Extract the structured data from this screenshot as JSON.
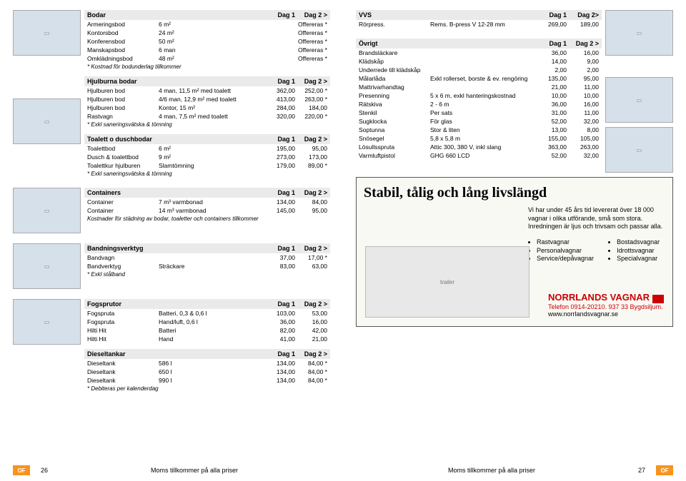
{
  "left": {
    "bodar": {
      "title": "Bodar",
      "d1": "Dag 1",
      "d2": "Dag 2 >",
      "rows": [
        {
          "name": "Armeringsbod",
          "desc": "6 m²",
          "d1": "",
          "d2": "Offereras *"
        },
        {
          "name": "Kontorsbod",
          "desc": "24 m²",
          "d1": "",
          "d2": "Offereras *"
        },
        {
          "name": "Konferensbod",
          "desc": "50 m²",
          "d1": "",
          "d2": "Offereras *"
        },
        {
          "name": "Manskapsbod",
          "desc": "6 man",
          "d1": "",
          "d2": "Offereras *"
        },
        {
          "name": "Omklädningsbod",
          "desc": "48 m²",
          "d1": "",
          "d2": "Offereras *"
        }
      ],
      "note": "* Kostnad för bodunderlag tillkommer"
    },
    "hjulburna": {
      "title": "Hjulburna bodar",
      "d1": "Dag 1",
      "d2": "Dag 2 >",
      "rows": [
        {
          "name": "Hjulburen bod",
          "desc": "4 man, 11,5 m² med toalett",
          "d1": "362,00",
          "d2": "252,00 *"
        },
        {
          "name": "Hjulburen bod",
          "desc": "4/6 man, 12,9 m² med toalett",
          "d1": "413,00",
          "d2": "263,00 *"
        },
        {
          "name": "Hjulburen bod",
          "desc": "Kontor, 15 m²",
          "d1": "284,00",
          "d2": "184,00"
        },
        {
          "name": "Rastvagn",
          "desc": "4 man, 7,5 m² med toalett",
          "d1": "320,00",
          "d2": "220,00 *"
        }
      ],
      "note": "* Exkl saneringsvätska & tömning"
    },
    "toalett": {
      "title": "Toalett o duschbodar",
      "d1": "Dag 1",
      "d2": "Dag 2 >",
      "rows": [
        {
          "name": "Toalettbod",
          "desc": "6 m²",
          "d1": "195,00",
          "d2": "95,00"
        },
        {
          "name": "Dusch & toalettbod",
          "desc": "9 m²",
          "d1": "273,00",
          "d2": "173,00"
        },
        {
          "name": "Toalettkur hjulburen",
          "desc": "Slamtömning",
          "d1": "179,00",
          "d2": "89,00 *"
        }
      ],
      "note": "* Exkl saneringsvätska & tömning"
    },
    "containers": {
      "title": "Containers",
      "d1": "Dag 1",
      "d2": "Dag 2 >",
      "rows": [
        {
          "name": "Container",
          "desc": "7 m³ varmbonad",
          "d1": "134,00",
          "d2": "84,00"
        },
        {
          "name": "Container",
          "desc": "14 m³ varmbonad",
          "d1": "145,00",
          "d2": "95,00"
        }
      ],
      "note": "Kostnader för städning av bodar, toaletter och containers tillkommer"
    },
    "bandning": {
      "title": "Bandningsverktyg",
      "d1": "Dag 1",
      "d2": "Dag 2 >",
      "rows": [
        {
          "name": "Bandvagn",
          "desc": "",
          "d1": "37,00",
          "d2": "17,00 *"
        },
        {
          "name": "Bandverktyg",
          "desc": "Sträckare",
          "d1": "83,00",
          "d2": "63,00"
        }
      ],
      "note": "* Exkl stålband"
    },
    "fogsprutor": {
      "title": "Fogsprutor",
      "d1": "Dag 1",
      "d2": "Dag 2 >",
      "rows": [
        {
          "name": "Fogspruta",
          "desc": "Batteri, 0,3 & 0,6 l",
          "d1": "103,00",
          "d2": "53,00"
        },
        {
          "name": "Fogspruta",
          "desc": "Hand/luft, 0,6 l",
          "d1": "36,00",
          "d2": "16,00"
        },
        {
          "name": "Hilti Hit",
          "desc": "Batteri",
          "d1": "82,00",
          "d2": "42,00"
        },
        {
          "name": "Hilti Hit",
          "desc": "Hand",
          "d1": "41,00",
          "d2": "21,00"
        }
      ]
    },
    "diesel": {
      "title": "Dieseltankar",
      "d1": "Dag 1",
      "d2": "Dag 2 >",
      "rows": [
        {
          "name": "Dieseltank",
          "desc": "586 l",
          "d1": "134,00",
          "d2": "84,00 *"
        },
        {
          "name": "Dieseltank",
          "desc": "650 l",
          "d1": "134,00",
          "d2": "84,00 *"
        },
        {
          "name": "Dieseltank",
          "desc": "990 l",
          "d1": "134,00",
          "d2": "84,00 *"
        }
      ],
      "note": "* Debiteras per kalenderdag"
    },
    "footer": {
      "page": "26",
      "text": "Moms tillkommer på alla priser",
      "logo": "OF"
    }
  },
  "right": {
    "vvs": {
      "title": "VVS",
      "d1": "Dag 1",
      "d2": "Dag 2>",
      "rows": [
        {
          "name": "Rörpress.",
          "desc": "Rems. B-press V 12-28 mm",
          "d1": "269,00",
          "d2": "189,00"
        }
      ]
    },
    "ovrigt": {
      "title": "Övrigt",
      "d1": "Dag 1",
      "d2": "Dag 2 >",
      "rows": [
        {
          "name": "Brandsläckare",
          "desc": "",
          "d1": "36,00",
          "d2": "16,00"
        },
        {
          "name": "Klädskåp",
          "desc": "",
          "d1": "14,00",
          "d2": "9,00"
        },
        {
          "name": "Underrede till klädskåp",
          "desc": "",
          "d1": "2,00",
          "d2": "2,00"
        },
        {
          "name": "Målarlåda",
          "desc": "Exkl rollerset, borste & ev. rengöring",
          "d1": "135,00",
          "d2": "95,00"
        },
        {
          "name": "Mattrivarhandtag",
          "desc": "",
          "d1": "21,00",
          "d2": "11,00"
        },
        {
          "name": "Presenning",
          "desc": "5 x 6 m, exkl hanteringskostnad",
          "d1": "10,00",
          "d2": "10,00"
        },
        {
          "name": "Rätskiva",
          "desc": "2 - 6 m",
          "d1": "36,00",
          "d2": "16,00"
        },
        {
          "name": "Stenkil",
          "desc": "Per sats",
          "d1": "31,00",
          "d2": "11,00"
        },
        {
          "name": "Sugklocka",
          "desc": "För glas",
          "d1": "52,00",
          "d2": "32,00"
        },
        {
          "name": "Soptunna",
          "desc": "Stor & liten",
          "d1": "13,00",
          "d2": "8,00"
        },
        {
          "name": "Snösegel",
          "desc": "5,8 x 5,8 m",
          "d1": "155,00",
          "d2": "105,00"
        },
        {
          "name": "Lösullsspruta",
          "desc": "Attic 300, 380 V, inkl slang",
          "d1": "363,00",
          "d2": "263,00"
        },
        {
          "name": "Varmluftpistol",
          "desc": "GHG 660 LCD",
          "d1": "52,00",
          "d2": "32,00"
        }
      ]
    },
    "promo": {
      "title": "Stabil, tålig och lång livslängd",
      "blurb": "Vi har under 45 års tid levererat över 18 000 vagnar i olika utförande, små som stora. Inredningen är ljus och trivsam och passar alla.",
      "bullets_l": [
        "Rastvagnar",
        "Personalvagnar",
        "Service/depåvagnar"
      ],
      "bullets_r": [
        "Bostadsvagnar",
        "Idrottsvagnar",
        "Specialvagnar"
      ],
      "brand": "NORRLANDS VAGNAR",
      "tel": "Telefon 0914-20210.  937 33 Bygdsiljum.",
      "url": "www.norrlandsvagnar.se"
    },
    "footer": {
      "page": "27",
      "text": "Moms tillkommer på alla priser",
      "logo": "OF"
    }
  }
}
